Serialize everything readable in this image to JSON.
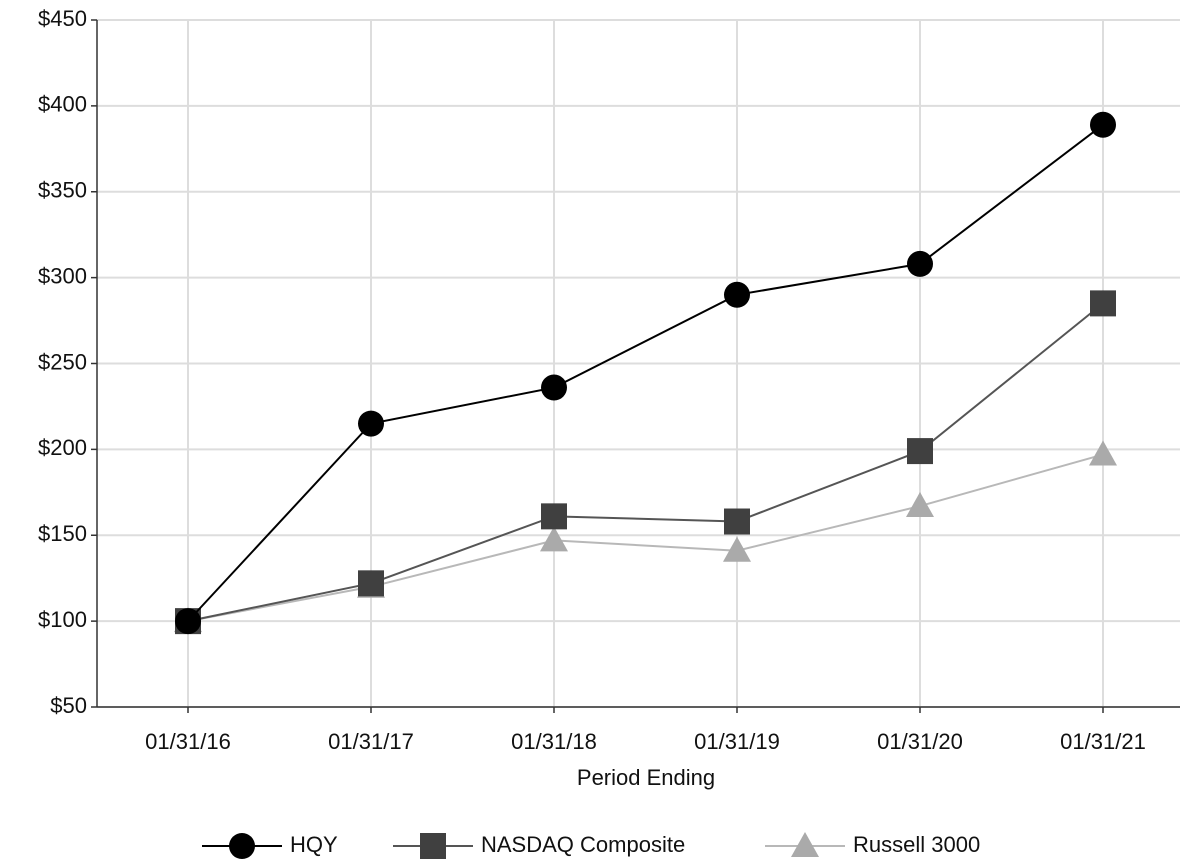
{
  "chart_data": {
    "type": "line",
    "x_label": "Period Ending",
    "categories": [
      "01/31/16",
      "01/31/17",
      "01/31/18",
      "01/31/19",
      "01/31/20",
      "01/31/21"
    ],
    "series": [
      {
        "name": "HQY",
        "color": "#000000",
        "line_color": "#000000",
        "marker": "circle",
        "values": [
          100,
          215,
          236,
          290,
          308,
          389
        ]
      },
      {
        "name": "NASDAQ Composite",
        "color": "#404040",
        "line_color": "#555555",
        "marker": "square",
        "values": [
          100,
          122,
          161,
          158,
          199,
          285
        ]
      },
      {
        "name": "Russell 3000",
        "color": "#aaaaaa",
        "line_color": "#b8b8b8",
        "marker": "triangle",
        "values": [
          100,
          120,
          147,
          141,
          167,
          197
        ]
      }
    ],
    "ylim": [
      50,
      450
    ],
    "yticks": [
      {
        "value": 50,
        "label": "$50"
      },
      {
        "value": 100,
        "label": "$100"
      },
      {
        "value": 150,
        "label": "$150"
      },
      {
        "value": 200,
        "label": "$200"
      },
      {
        "value": 250,
        "label": "$250"
      },
      {
        "value": 300,
        "label": "$300"
      },
      {
        "value": 350,
        "label": "$350"
      },
      {
        "value": 400,
        "label": "$400"
      },
      {
        "value": 450,
        "label": "$450"
      }
    ],
    "grid": true,
    "legend": "bottom"
  }
}
